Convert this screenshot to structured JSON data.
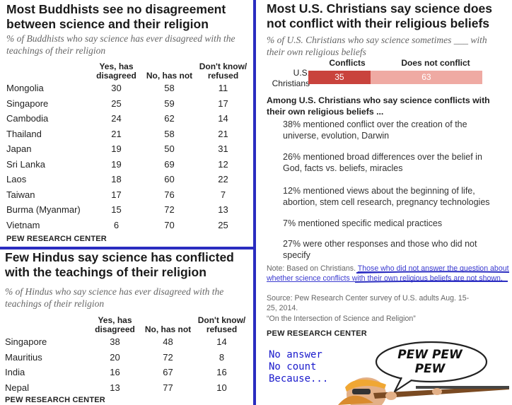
{
  "buddhist": {
    "title": "Most Buddhists see no disagreement between science and  their religion",
    "subtitle": "% of Buddhists who say science has ever disagreed with the teachings of their religion",
    "col_yes": "Yes, has disagreed",
    "col_no": "No, has not",
    "col_dk": "Don't know/ refused",
    "rows": [
      {
        "country": "Mongolia",
        "yes": "30",
        "no": "58",
        "dk": "11"
      },
      {
        "country": "Singapore",
        "yes": "25",
        "no": "59",
        "dk": "17"
      },
      {
        "country": "Cambodia",
        "yes": "24",
        "no": "62",
        "dk": "14"
      },
      {
        "country": "Thailand",
        "yes": "21",
        "no": "58",
        "dk": "21"
      },
      {
        "country": "Japan",
        "yes": "19",
        "no": "50",
        "dk": "31"
      },
      {
        "country": "Sri Lanka",
        "yes": "19",
        "no": "69",
        "dk": "12"
      },
      {
        "country": "Laos",
        "yes": "18",
        "no": "60",
        "dk": "22"
      },
      {
        "country": "Taiwan",
        "yes": "17",
        "no": "76",
        "dk": "7"
      },
      {
        "country": "Burma (Myanmar)",
        "yes": "15",
        "no": "72",
        "dk": "13"
      },
      {
        "country": "Vietnam",
        "yes": "6",
        "no": "70",
        "dk": "25"
      }
    ],
    "source": "PEW RESEARCH CENTER"
  },
  "hindu": {
    "title": "Few Hindus say science has conflicted with the teachings of their religion",
    "subtitle": "% of Hindus who say science has ever disagreed with the teachings of their religion",
    "col_yes": "Yes, has disagreed",
    "col_no": "No, has not",
    "col_dk": "Don't know/ refused",
    "rows": [
      {
        "country": "Singapore",
        "yes": "38",
        "no": "48",
        "dk": "14"
      },
      {
        "country": "Mauritius",
        "yes": "20",
        "no": "72",
        "dk": "8"
      },
      {
        "country": "India",
        "yes": "16",
        "no": "67",
        "dk": "16"
      },
      {
        "country": "Nepal",
        "yes": "13",
        "no": "77",
        "dk": "10"
      }
    ],
    "source": "PEW RESEARCH CENTER"
  },
  "christian": {
    "title": "Most U.S. Christians say science does not conflict with their religious beliefs",
    "subtitle": "% of U.S. Christians who say science sometimes ___ with their own religious beliefs",
    "row_label": "U.S. Christians",
    "conflicts_label": "Conflicts",
    "conflicts_value": "35",
    "no_conflict_label": "Does not conflict",
    "no_conflict_value": "63",
    "among_heading": "Among U.S. Christians who say science conflicts with their own religious beliefs ...",
    "items": [
      "38% mentioned conflict over the creation of the universe, evolution, Darwin",
      "26% mentioned broad differences over the belief in God, facts vs. beliefs, miracles",
      "12% mentioned views about the beginning of life, abortion, stem cell research, pregnancy technologies",
      "7% mentioned specific medical practices",
      "27% were other responses and those who did not specify"
    ],
    "note_prefix": "Note: Based on Christians. ",
    "note_underlined": "Those who did not answer the question about whether science conflicts with their own religious beliefs are not shown.",
    "source_line": "Source: Pew Research Center survey of U.S. adults Aug. 15-25, 2014.",
    "report_line": "“On the Intersection of Science and Religion”",
    "source": "PEW RESEARCH CENTER",
    "meme_lines": [
      "No answer",
      "No count",
      "Because..."
    ],
    "bubble_text": "PEW PEW PEW"
  },
  "colors": {
    "divider": "#2a2cc0",
    "conflicts": "#c9433d",
    "no_conflict": "#efaaa3"
  },
  "chart_data": [
    {
      "type": "table",
      "title": "Most Buddhists see no disagreement between science and  their religion",
      "columns": [
        "Yes, has disagreed",
        "No, has not",
        "Don't know/ refused"
      ],
      "categories": [
        "Mongolia",
        "Singapore",
        "Cambodia",
        "Thailand",
        "Japan",
        "Sri Lanka",
        "Laos",
        "Taiwan",
        "Burma (Myanmar)",
        "Vietnam"
      ],
      "series": [
        {
          "name": "Yes, has disagreed",
          "values": [
            30,
            25,
            24,
            21,
            19,
            19,
            18,
            17,
            15,
            6
          ]
        },
        {
          "name": "No, has not",
          "values": [
            58,
            59,
            62,
            58,
            50,
            69,
            60,
            76,
            72,
            70
          ]
        },
        {
          "name": "Don't know/ refused",
          "values": [
            11,
            17,
            14,
            21,
            31,
            12,
            22,
            7,
            13,
            25
          ]
        }
      ]
    },
    {
      "type": "table",
      "title": "Few Hindus say science has conflicted with the teachings of their religion",
      "columns": [
        "Yes, has disagreed",
        "No, has not",
        "Don't know/ refused"
      ],
      "categories": [
        "Singapore",
        "Mauritius",
        "India",
        "Nepal"
      ],
      "series": [
        {
          "name": "Yes, has disagreed",
          "values": [
            38,
            20,
            16,
            13
          ]
        },
        {
          "name": "No, has not",
          "values": [
            48,
            72,
            67,
            77
          ]
        },
        {
          "name": "Don't know/ refused",
          "values": [
            14,
            8,
            16,
            10
          ]
        }
      ]
    },
    {
      "type": "bar",
      "title": "Most U.S. Christians say science does not conflict with their religious beliefs",
      "categories": [
        "U.S. Christians"
      ],
      "series": [
        {
          "name": "Conflicts",
          "values": [
            35
          ]
        },
        {
          "name": "Does not conflict",
          "values": [
            63
          ]
        }
      ],
      "xlim": [
        0,
        100
      ],
      "stacked": true
    }
  ]
}
